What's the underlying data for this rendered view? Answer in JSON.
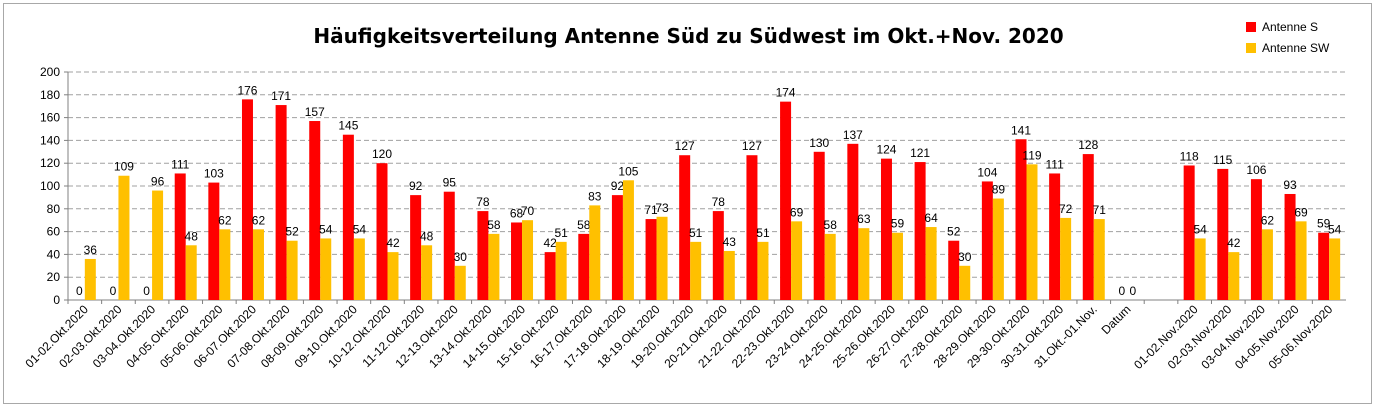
{
  "chart_data": {
    "type": "bar",
    "title": "Häufigkeitsverteilung Antenne Süd zu Südwest im Okt.+Nov. 2020",
    "xlabel": "",
    "ylabel": "",
    "ylim": [
      0,
      200
    ],
    "yticks": [
      0,
      20,
      40,
      60,
      80,
      100,
      120,
      140,
      160,
      180,
      200
    ],
    "grid": true,
    "legend_position": "top-right",
    "categories": [
      "01-02.Okt.2020",
      "02-03.Okt.2020",
      "03-04.Okt.2020",
      "04-05.Okt.2020",
      "05-06.Okt.2020",
      "06-07.Okt.2020",
      "07-08.Okt.2020",
      "08-09.Okt.2020",
      "09-10.Okt.2020",
      "10-12.Okt.2020",
      "11-12.Okt.2020",
      "12-13.Okt.2020",
      "13-14.Okt.2020",
      "14-15.Okt.2020",
      "15-16.Okt.2020",
      "16-17.Okt.2020",
      "17-18.Okt.2020",
      "18-19.Okt.2020",
      "19-20.Okt.2020",
      "20-21.Okt.2020",
      "21-22.Okt.2020",
      "22-23.Okt.2020",
      "23-24.Okt.2020",
      "24-25.Okt.2020",
      "25-26.Okt.2020",
      "26-27.Okt.2020",
      "27-28.Okt.2020",
      "28-29.Okt.2020",
      "29-30.Okt.2020",
      "30-31.Okt.2020",
      "31.Okt.-01.Nov.",
      "Datum",
      "",
      "01-02.Nov.2020",
      "02-03.Nov.2020",
      "03-04.Nov.2020",
      "04-05.Nov.2020",
      "05-06.Nov.2020"
    ],
    "series": [
      {
        "name": "Antenne S",
        "color": "#ff0000",
        "values": [
          0,
          0,
          0,
          111,
          103,
          176,
          171,
          157,
          145,
          120,
          92,
          95,
          78,
          68,
          42,
          58,
          92,
          71,
          127,
          78,
          127,
          174,
          130,
          137,
          124,
          121,
          52,
          104,
          141,
          111,
          128,
          0,
          null,
          118,
          115,
          106,
          93,
          59
        ]
      },
      {
        "name": "Antenne SW",
        "color": "#ffc000",
        "values": [
          36,
          109,
          96,
          48,
          62,
          62,
          52,
          54,
          54,
          42,
          48,
          30,
          58,
          70,
          51,
          83,
          105,
          73,
          51,
          43,
          51,
          69,
          58,
          63,
          59,
          64,
          30,
          89,
          119,
          72,
          71,
          0,
          null,
          54,
          42,
          62,
          69,
          54
        ]
      }
    ],
    "value_labels": {
      "s": [
        "0",
        "0",
        "0",
        "111",
        "103",
        "176",
        "171",
        "157",
        "145",
        "120",
        "92",
        "95",
        "78",
        "68",
        "42",
        "58",
        "92",
        "71",
        "127",
        "78",
        "127",
        "174",
        "130",
        "137",
        "124",
        "121",
        "52",
        "104",
        "141",
        "111",
        "128",
        "0",
        "",
        "118",
        "115",
        "106",
        "93",
        "59"
      ],
      "sw": [
        "36",
        "109",
        "96",
        "48",
        "62",
        "62",
        "52",
        "54",
        "54",
        "42",
        "48",
        "30",
        "58",
        "70",
        "51",
        "83",
        "105",
        "73",
        "51",
        "43",
        "51",
        "69",
        "58",
        "63",
        "59",
        "64",
        "30",
        "89",
        "119",
        "72",
        "71",
        "0",
        "",
        "54",
        "42",
        "62",
        "69",
        "54"
      ]
    }
  }
}
